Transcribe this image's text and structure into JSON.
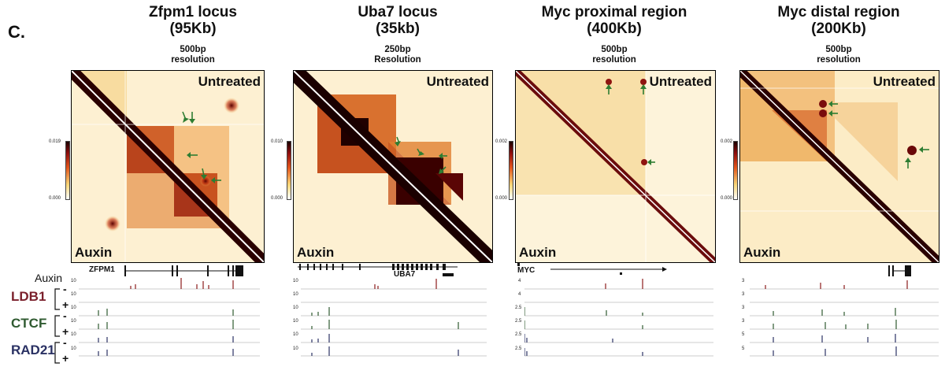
{
  "figure": {
    "panel_label": "C.",
    "colors": {
      "ldb1": "#7a1f2b",
      "ctcf": "#2f5a30",
      "rad21": "#2a3163",
      "arrow": "#2e7d32",
      "auxin_track": "#8b1a1a"
    },
    "panels": [
      {
        "title_line1": "Zfpm1 locus",
        "title_line2": "(95Kb)",
        "resolution_line1": "500bp",
        "resolution_line2": "resolution",
        "colorbar_max": "0.019",
        "colorbar_min": "0.000",
        "top_label": "Untreated",
        "bottom_label": "Auxin",
        "gene_label": "ZFPM1",
        "track_scales": {
          "auxin": "10",
          "ldb1_minus": "10",
          "ldb1_plus": "10",
          "ctcf_minus": "10",
          "ctcf_plus": "10",
          "rad21_minus": "10",
          "rad21_plus": "10"
        }
      },
      {
        "title_line1": "Uba7 locus",
        "title_line2": "(35kb)",
        "resolution_line1": "250bp",
        "resolution_line2": "Resolution",
        "colorbar_max": "0.010",
        "colorbar_min": "0.000",
        "top_label": "Untreated",
        "bottom_label": "Auxin",
        "gene_label": "UBA7",
        "track_scales": {
          "auxin": "10",
          "ldb1_minus": "10",
          "ldb1_plus": "",
          "ctcf_minus": "10",
          "ctcf_plus": "10",
          "rad21_minus": "10",
          "rad21_plus": "10"
        }
      },
      {
        "title_line1": "Myc proximal region",
        "title_line2": "(400Kb)",
        "resolution_line1": "500bp",
        "resolution_line2": "resolution",
        "colorbar_max": "0.002",
        "colorbar_min": "0.000",
        "top_label": "Untreated",
        "bottom_label": "Auxin",
        "gene_label": "MYC",
        "track_scales": {
          "auxin": "4",
          "ldb1_minus": "4",
          "ldb1_plus": "",
          "ctcf_minus": "2.5",
          "ctcf_plus": "2.5",
          "rad21_minus": "2.5",
          "rad21_plus": "2.5"
        }
      },
      {
        "title_line1": "Myc distal region",
        "title_line2": "(200Kb)",
        "resolution_line1": "500bp",
        "resolution_line2": "resolution",
        "colorbar_max": "0.002",
        "colorbar_min": "0.000",
        "top_label": "Untreated",
        "bottom_label": "Auxin",
        "gene_label": "",
        "track_scales": {
          "auxin": "3",
          "ldb1_minus": "3",
          "ldb1_plus": "",
          "ctcf_minus": "3",
          "ctcf_plus": "3",
          "rad21_minus": "5",
          "rad21_plus": "5"
        }
      }
    ],
    "tracks": {
      "auxin_label": "Auxin",
      "ldb1_label": "LDB1",
      "ctcf_label": "CTCF",
      "rad21_label": "RAD21",
      "minus": "-",
      "plus": "+"
    }
  }
}
